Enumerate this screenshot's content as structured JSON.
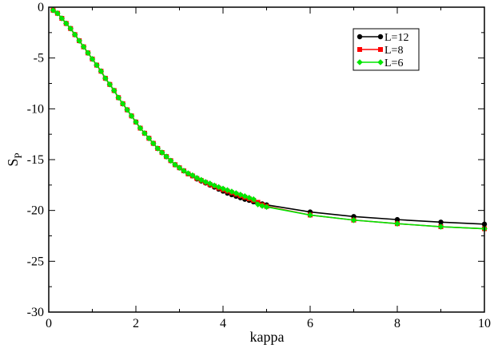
{
  "chart_data": {
    "type": "line",
    "title": "",
    "xlabel": "kappa",
    "ylabel": "S",
    "ylabel_subscript": "P",
    "xlim": [
      0,
      10
    ],
    "ylim": [
      -30,
      0
    ],
    "xticks": [
      0,
      2,
      4,
      6,
      8,
      10
    ],
    "yticks": [
      0,
      -5,
      -10,
      -15,
      -20,
      -25,
      -30
    ],
    "xtick_labels": [
      "0",
      "2",
      "4",
      "6",
      "8",
      "10"
    ],
    "ytick_labels": [
      "0",
      "-5",
      "-10",
      "-15",
      "-20",
      "-25",
      "-30"
    ],
    "grid": false,
    "legend_position": "top-right",
    "series": [
      {
        "name": "L=12",
        "color": "#000000",
        "marker": "circle",
        "points": [
          [
            0.1,
            -0.3
          ],
          [
            0.2,
            -0.6
          ],
          [
            0.3,
            -1.1
          ],
          [
            0.4,
            -1.6
          ],
          [
            0.5,
            -2.1
          ],
          [
            0.6,
            -2.7
          ],
          [
            0.7,
            -3.3
          ],
          [
            0.8,
            -3.9
          ],
          [
            0.9,
            -4.5
          ],
          [
            1.0,
            -5.1
          ],
          [
            1.1,
            -5.7
          ],
          [
            1.2,
            -6.3
          ],
          [
            1.3,
            -7.0
          ],
          [
            1.4,
            -7.6
          ],
          [
            1.5,
            -8.2
          ],
          [
            1.6,
            -8.9
          ],
          [
            1.7,
            -9.5
          ],
          [
            1.8,
            -10.1
          ],
          [
            1.9,
            -10.7
          ],
          [
            2.0,
            -11.3
          ],
          [
            2.1,
            -11.9
          ],
          [
            2.2,
            -12.4
          ],
          [
            2.3,
            -12.9
          ],
          [
            2.4,
            -13.4
          ],
          [
            2.5,
            -13.9
          ],
          [
            2.6,
            -14.3
          ],
          [
            2.7,
            -14.7
          ],
          [
            2.8,
            -15.1
          ],
          [
            2.9,
            -15.5
          ],
          [
            3.0,
            -15.8
          ],
          [
            3.1,
            -16.1
          ],
          [
            3.2,
            -16.4
          ],
          [
            3.3,
            -16.6
          ],
          [
            3.4,
            -16.9
          ],
          [
            3.5,
            -17.1
          ],
          [
            3.6,
            -17.3
          ],
          [
            3.7,
            -17.5
          ],
          [
            3.8,
            -17.7
          ],
          [
            3.9,
            -17.9
          ],
          [
            4.0,
            -18.1
          ],
          [
            4.1,
            -18.3
          ],
          [
            4.2,
            -18.45
          ],
          [
            4.3,
            -18.6
          ],
          [
            4.4,
            -18.75
          ],
          [
            4.5,
            -18.9
          ],
          [
            4.6,
            -19.0
          ],
          [
            4.7,
            -19.15
          ],
          [
            4.8,
            -19.25
          ],
          [
            4.9,
            -19.35
          ],
          [
            5.0,
            -19.45
          ],
          [
            6.0,
            -20.15
          ],
          [
            7.0,
            -20.6
          ],
          [
            8.0,
            -20.9
          ],
          [
            9.0,
            -21.15
          ],
          [
            10.0,
            -21.35
          ]
        ]
      },
      {
        "name": "L=8",
        "color": "#ff0000",
        "marker": "square",
        "points": [
          [
            0.1,
            -0.3
          ],
          [
            0.2,
            -0.6
          ],
          [
            0.3,
            -1.1
          ],
          [
            0.4,
            -1.6
          ],
          [
            0.5,
            -2.1
          ],
          [
            0.6,
            -2.7
          ],
          [
            0.7,
            -3.3
          ],
          [
            0.8,
            -3.9
          ],
          [
            0.9,
            -4.5
          ],
          [
            1.0,
            -5.1
          ],
          [
            1.1,
            -5.7
          ],
          [
            1.2,
            -6.3
          ],
          [
            1.3,
            -7.0
          ],
          [
            1.4,
            -7.6
          ],
          [
            1.5,
            -8.2
          ],
          [
            1.6,
            -8.9
          ],
          [
            1.7,
            -9.5
          ],
          [
            1.8,
            -10.1
          ],
          [
            1.9,
            -10.7
          ],
          [
            2.0,
            -11.3
          ],
          [
            2.1,
            -11.9
          ],
          [
            2.2,
            -12.4
          ],
          [
            2.3,
            -12.9
          ],
          [
            2.4,
            -13.4
          ],
          [
            2.5,
            -13.9
          ],
          [
            2.6,
            -14.3
          ],
          [
            2.7,
            -14.7
          ],
          [
            2.8,
            -15.1
          ],
          [
            2.9,
            -15.5
          ],
          [
            3.0,
            -15.8
          ],
          [
            3.1,
            -16.1
          ],
          [
            3.2,
            -16.4
          ],
          [
            3.3,
            -16.6
          ],
          [
            3.4,
            -16.85
          ],
          [
            3.5,
            -17.05
          ],
          [
            3.6,
            -17.25
          ],
          [
            3.7,
            -17.45
          ],
          [
            3.8,
            -17.6
          ],
          [
            3.9,
            -17.8
          ],
          [
            4.0,
            -17.95
          ],
          [
            4.1,
            -18.1
          ],
          [
            4.2,
            -18.25
          ],
          [
            4.3,
            -18.4
          ],
          [
            4.4,
            -18.55
          ],
          [
            4.5,
            -18.7
          ],
          [
            4.6,
            -18.85
          ],
          [
            4.7,
            -19.0
          ],
          [
            4.8,
            -19.2
          ],
          [
            4.9,
            -19.45
          ],
          [
            5.0,
            -19.6
          ],
          [
            6.0,
            -20.45
          ],
          [
            7.0,
            -20.95
          ],
          [
            8.0,
            -21.3
          ],
          [
            9.0,
            -21.6
          ],
          [
            10.0,
            -21.8
          ]
        ]
      },
      {
        "name": "L=6",
        "color": "#00e600",
        "marker": "diamond",
        "points": [
          [
            0.1,
            -0.3
          ],
          [
            0.2,
            -0.6
          ],
          [
            0.3,
            -1.1
          ],
          [
            0.4,
            -1.6
          ],
          [
            0.5,
            -2.1
          ],
          [
            0.6,
            -2.7
          ],
          [
            0.7,
            -3.3
          ],
          [
            0.8,
            -3.9
          ],
          [
            0.9,
            -4.5
          ],
          [
            1.0,
            -5.1
          ],
          [
            1.1,
            -5.7
          ],
          [
            1.2,
            -6.3
          ],
          [
            1.3,
            -7.0
          ],
          [
            1.4,
            -7.6
          ],
          [
            1.5,
            -8.2
          ],
          [
            1.6,
            -8.9
          ],
          [
            1.7,
            -9.5
          ],
          [
            1.8,
            -10.1
          ],
          [
            1.9,
            -10.7
          ],
          [
            2.0,
            -11.3
          ],
          [
            2.1,
            -11.9
          ],
          [
            2.2,
            -12.4
          ],
          [
            2.3,
            -12.9
          ],
          [
            2.4,
            -13.4
          ],
          [
            2.5,
            -13.9
          ],
          [
            2.6,
            -14.3
          ],
          [
            2.7,
            -14.7
          ],
          [
            2.8,
            -15.1
          ],
          [
            2.9,
            -15.5
          ],
          [
            3.0,
            -15.8
          ],
          [
            3.1,
            -16.1
          ],
          [
            3.2,
            -16.35
          ],
          [
            3.3,
            -16.55
          ],
          [
            3.4,
            -16.8
          ],
          [
            3.5,
            -17.0
          ],
          [
            3.6,
            -17.2
          ],
          [
            3.7,
            -17.35
          ],
          [
            3.8,
            -17.55
          ],
          [
            3.9,
            -17.7
          ],
          [
            4.0,
            -17.85
          ],
          [
            4.1,
            -18.0
          ],
          [
            4.2,
            -18.15
          ],
          [
            4.3,
            -18.3
          ],
          [
            4.4,
            -18.45
          ],
          [
            4.5,
            -18.6
          ],
          [
            4.6,
            -18.75
          ],
          [
            4.7,
            -18.9
          ],
          [
            4.8,
            -19.4
          ],
          [
            4.9,
            -19.55
          ],
          [
            5.0,
            -19.65
          ],
          [
            6.0,
            -20.45
          ],
          [
            7.0,
            -20.95
          ],
          [
            8.0,
            -21.3
          ],
          [
            9.0,
            -21.6
          ],
          [
            10.0,
            -21.8
          ]
        ]
      }
    ]
  }
}
